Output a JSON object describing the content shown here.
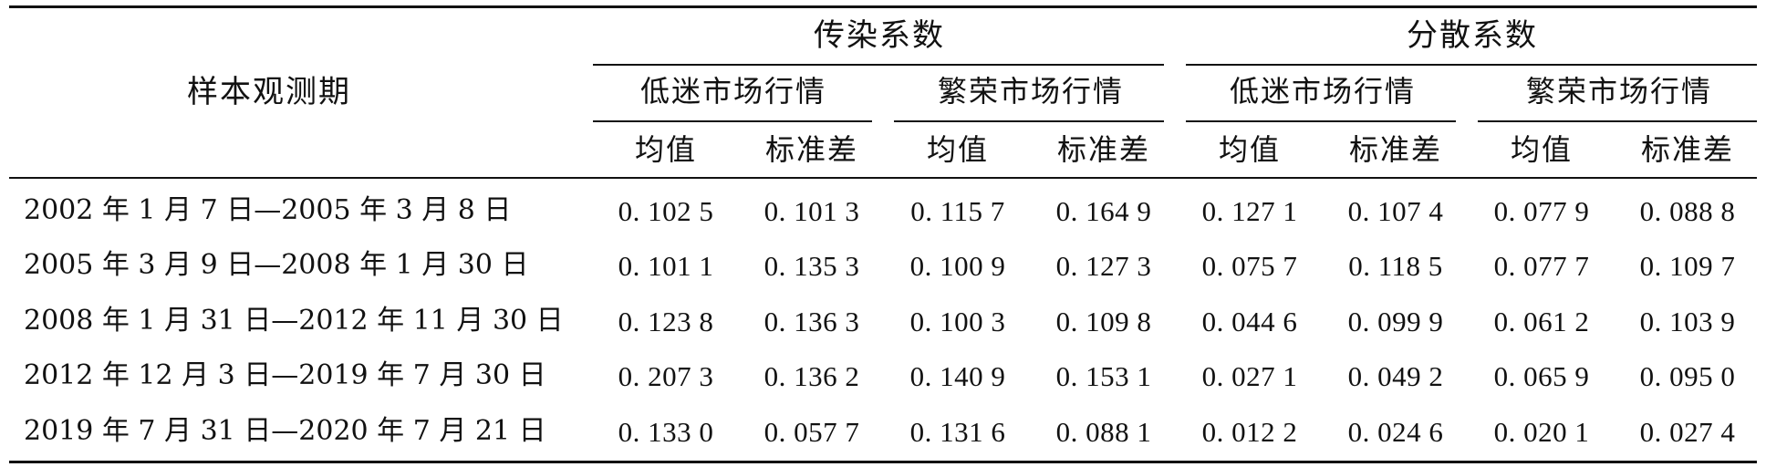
{
  "table": {
    "row_header": "样本观测期",
    "groups": [
      {
        "label": "传染系数",
        "subgroups": [
          {
            "label": "低迷市场行情",
            "cols": [
              "均值",
              "标准差"
            ]
          },
          {
            "label": "繁荣市场行情",
            "cols": [
              "均值",
              "标准差"
            ]
          }
        ]
      },
      {
        "label": "分散系数",
        "subgroups": [
          {
            "label": "低迷市场行情",
            "cols": [
              "均值",
              "标准差"
            ]
          },
          {
            "label": "繁荣市场行情",
            "cols": [
              "均值",
              "标准差"
            ]
          }
        ]
      }
    ],
    "rows": [
      {
        "period": "2002 年 1 月 7 日—2005 年 3 月 8 日",
        "values": [
          "0. 102 5",
          "0. 101 3",
          "0. 115 7",
          "0. 164 9",
          "0. 127 1",
          "0. 107 4",
          "0. 077 9",
          "0. 088 8"
        ]
      },
      {
        "period": "2005 年 3 月 9 日—2008 年 1 月 30 日",
        "values": [
          "0. 101 1",
          "0. 135 3",
          "0. 100 9",
          "0. 127 3",
          "0. 075 7",
          "0. 118 5",
          "0. 077 7",
          "0. 109 7"
        ]
      },
      {
        "period": "2008 年 1 月 31 日—2012 年 11 月 30 日",
        "values": [
          "0. 123 8",
          "0. 136 3",
          "0. 100 3",
          "0. 109 8",
          "0. 044 6",
          "0. 099 9",
          "0. 061 2",
          "0. 103 9"
        ]
      },
      {
        "period": "2012 年 12 月 3 日—2019 年 7 月 30 日",
        "values": [
          "0. 207 3",
          "0. 136 2",
          "0. 140 9",
          "0. 153 1",
          "0. 027 1",
          "0. 049 2",
          "0. 065 9",
          "0. 095 0"
        ]
      },
      {
        "period": "2019 年 7 月 31 日—2020 年 7 月 21 日",
        "values": [
          "0. 133 0",
          "0. 057 7",
          "0. 131 6",
          "0. 088 1",
          "0. 012 2",
          "0. 024 6",
          "0. 020 1",
          "0. 027 4"
        ]
      }
    ]
  }
}
